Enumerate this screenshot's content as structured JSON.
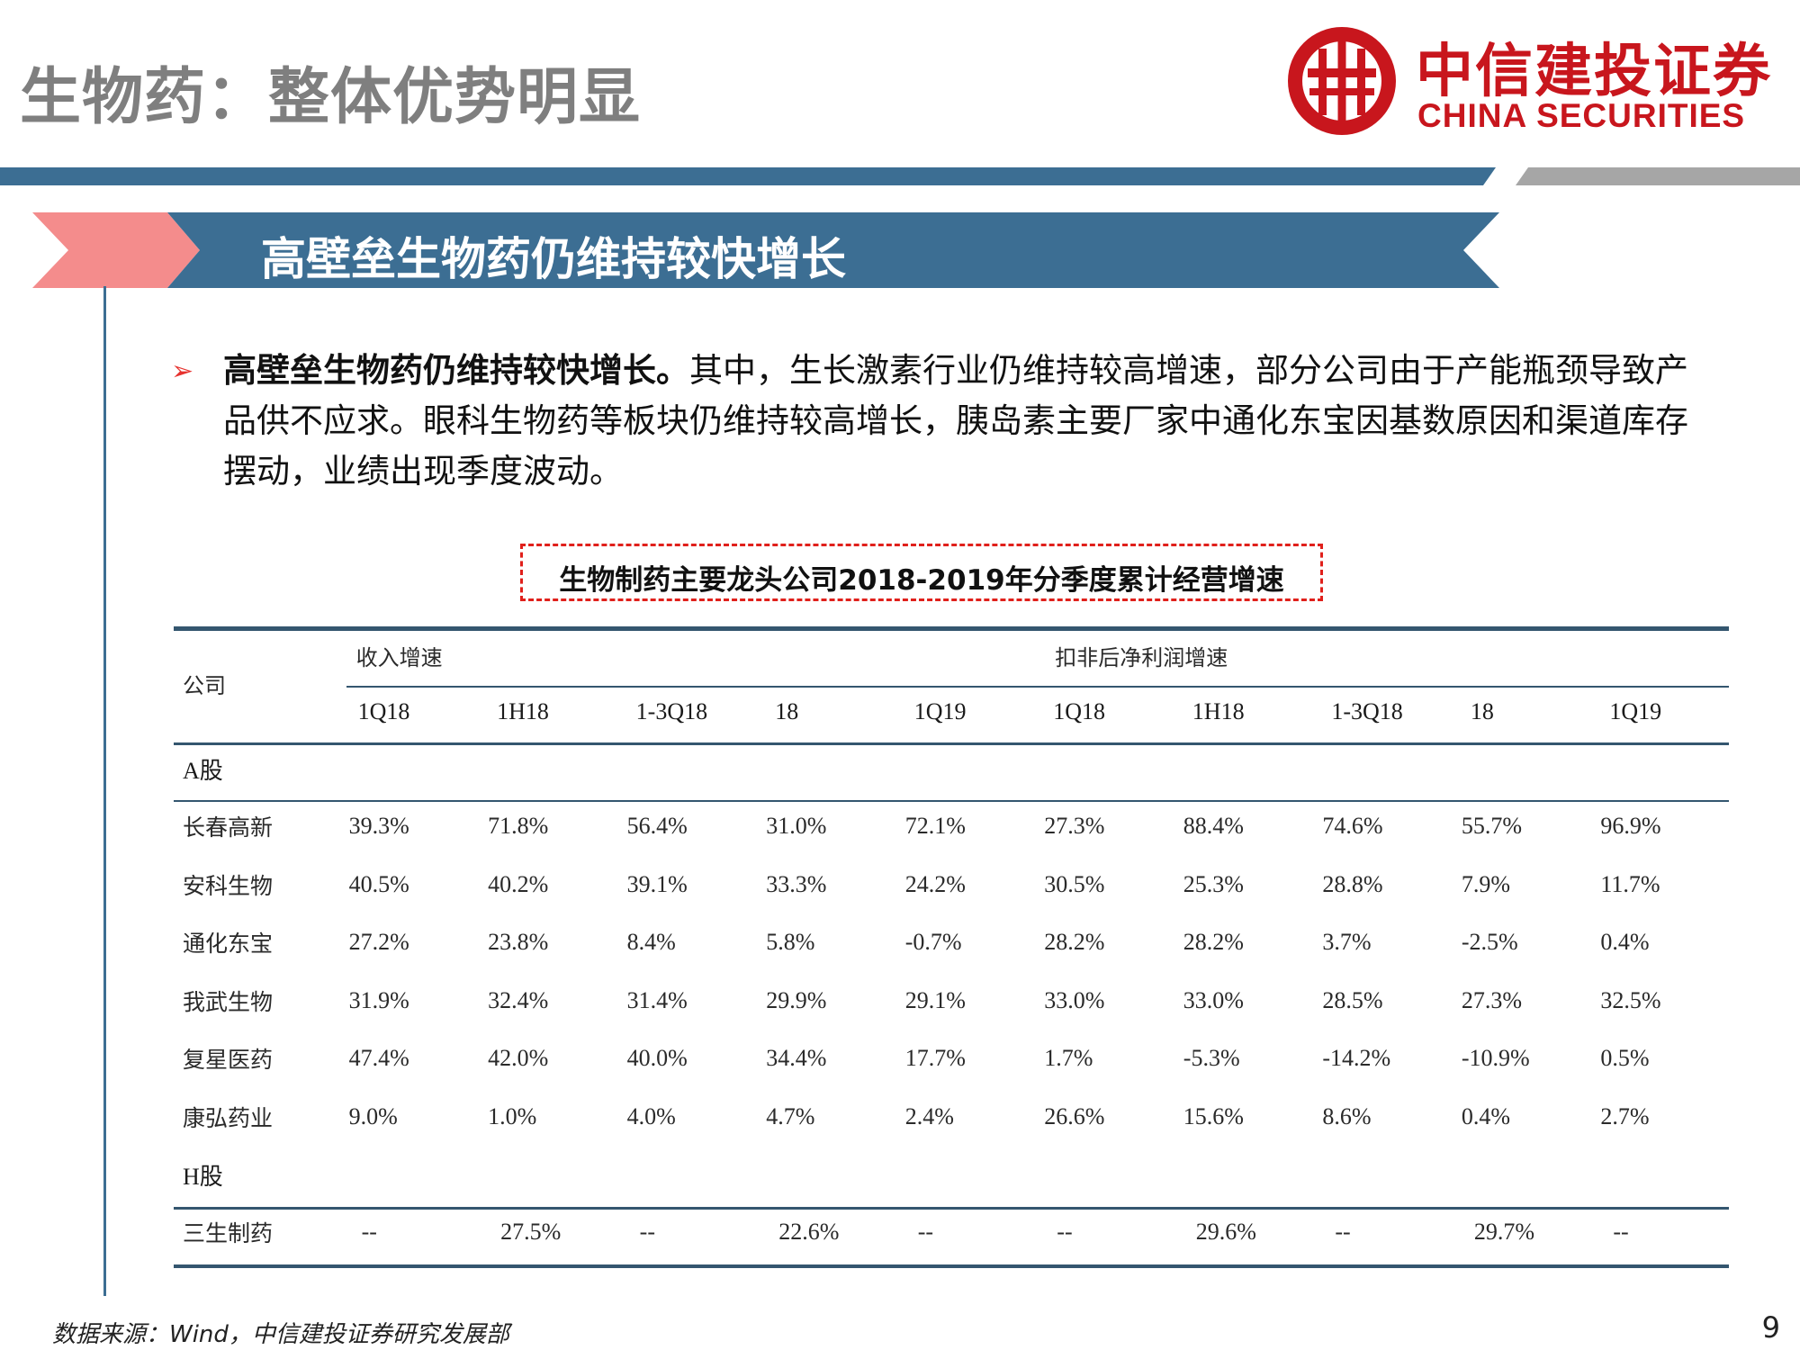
{
  "page": {
    "title": "生物药：整体优势明显",
    "page_number": "9",
    "footnote": "数据来源：Wind，中信建投证券研究发展部"
  },
  "logo": {
    "cn": "中信建投证券",
    "en": "CHINA SECURITIES",
    "color": "#c8161d"
  },
  "colors": {
    "banner_blue": "#3c6e93",
    "banner_pink": "#f48c8c",
    "rule_gray": "#a6a6a6",
    "accent_red": "#e0201b"
  },
  "section": {
    "title": "高壁垒生物药仍维持较快增长"
  },
  "bullet": {
    "icon": "arrow-bullet-icon",
    "lead": "高壁垒生物药仍维持较快增长。",
    "body": "其中，生长激素行业仍维持较高增速，部分公司由于产能瓶颈导致产品供不应求。眼科生物药等板块仍维持较高增长，胰岛素主要厂家中通化东宝因基数原因和渠道库存摆动，业绩出现季度波动。"
  },
  "table": {
    "caption": "生物制药主要龙头公司2018-2019年分季度累计经营增速",
    "company_header": "公司",
    "group_revenue": "收入增速",
    "group_profit": "扣非后净利润增速",
    "periods": [
      "1Q18",
      "1H18",
      "1-3Q18",
      "18",
      "1Q19",
      "1Q18",
      "1H18",
      "1-3Q18",
      "18",
      "1Q19"
    ],
    "sections": [
      {
        "label": "A股",
        "rows": [
          {
            "company": "长春高新",
            "values": [
              "39.3%",
              "71.8%",
              "56.4%",
              "31.0%",
              "72.1%",
              "27.3%",
              "88.4%",
              "74.6%",
              "55.7%",
              "96.9%"
            ]
          },
          {
            "company": "安科生物",
            "values": [
              "40.5%",
              "40.2%",
              "39.1%",
              "33.3%",
              "24.2%",
              "30.5%",
              "25.3%",
              "28.8%",
              "7.9%",
              "11.7%"
            ]
          },
          {
            "company": "通化东宝",
            "values": [
              "27.2%",
              "23.8%",
              "8.4%",
              "5.8%",
              "-0.7%",
              "28.2%",
              "28.2%",
              "3.7%",
              "-2.5%",
              "0.4%"
            ]
          },
          {
            "company": "我武生物",
            "values": [
              "31.9%",
              "32.4%",
              "31.4%",
              "29.9%",
              "29.1%",
              "33.0%",
              "33.0%",
              "28.5%",
              "27.3%",
              "32.5%"
            ]
          },
          {
            "company": "复星医药",
            "values": [
              "47.4%",
              "42.0%",
              "40.0%",
              "34.4%",
              "17.7%",
              "1.7%",
              "-5.3%",
              "-14.2%",
              "-10.9%",
              "0.5%"
            ]
          },
          {
            "company": "康弘药业",
            "values": [
              "9.0%",
              "1.0%",
              "4.0%",
              "4.7%",
              "2.4%",
              "26.6%",
              "15.6%",
              "8.6%",
              "0.4%",
              "2.7%"
            ]
          }
        ]
      },
      {
        "label": "H股",
        "rows": [
          {
            "company": "三生制药",
            "values": [
              "--",
              "27.5%",
              "--",
              "22.6%",
              "--",
              "--",
              "29.6%",
              "--",
              "29.7%",
              "--"
            ]
          }
        ]
      }
    ]
  }
}
